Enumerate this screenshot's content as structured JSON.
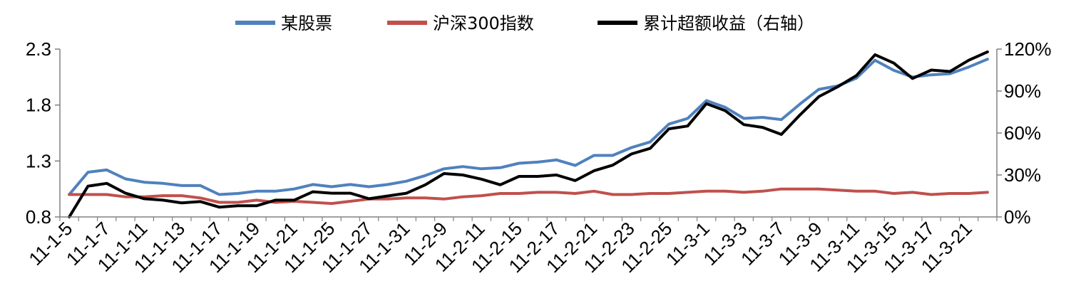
{
  "chart_data": {
    "type": "line",
    "title": "",
    "xlabel": "",
    "ylabel": "",
    "ylim": [
      0.8,
      2.3
    ],
    "ylim_right": [
      0,
      120
    ],
    "yticks": [
      "2.3",
      "1.8",
      "1.3",
      "0.8"
    ],
    "yticks_right": [
      "120%",
      "90%",
      "60%",
      "30%",
      "0%"
    ],
    "xtick_labels": [
      "11-1-5",
      "11-1-7",
      "11-1-11",
      "11-1-13",
      "11-1-17",
      "11-1-19",
      "11-1-21",
      "11-1-25",
      "11-1-27",
      "11-1-31",
      "11-2-9",
      "11-2-11",
      "11-2-15",
      "11-2-17",
      "11-2-21",
      "11-2-23",
      "11-2-25",
      "11-3-1",
      "11-3-3",
      "11-3-7",
      "11-3-9",
      "11-3-11",
      "11-3-15",
      "11-3-17",
      "11-3-21"
    ],
    "legend_position": "top",
    "grid": false,
    "series": [
      {
        "name": "某股票",
        "axis": "left",
        "color": "#4F81BD",
        "values": [
          1.0,
          1.2,
          1.22,
          1.14,
          1.11,
          1.1,
          1.08,
          1.08,
          1.0,
          1.01,
          1.03,
          1.03,
          1.05,
          1.09,
          1.07,
          1.09,
          1.07,
          1.09,
          1.12,
          1.17,
          1.23,
          1.25,
          1.23,
          1.24,
          1.28,
          1.29,
          1.31,
          1.26,
          1.35,
          1.35,
          1.42,
          1.47,
          1.63,
          1.68,
          1.84,
          1.78,
          1.68,
          1.69,
          1.67,
          1.81,
          1.94,
          1.97,
          2.04,
          2.2,
          2.11,
          2.05,
          2.07,
          2.08,
          2.14,
          2.21
        ]
      },
      {
        "name": "沪深300指数",
        "axis": "left",
        "color": "#C0504D",
        "values": [
          1.0,
          1.0,
          1.0,
          0.98,
          0.98,
          0.99,
          0.99,
          0.97,
          0.93,
          0.93,
          0.95,
          0.93,
          0.94,
          0.93,
          0.92,
          0.94,
          0.96,
          0.96,
          0.97,
          0.97,
          0.96,
          0.98,
          0.99,
          1.01,
          1.01,
          1.02,
          1.02,
          1.01,
          1.03,
          1.0,
          1.0,
          1.01,
          1.01,
          1.02,
          1.03,
          1.03,
          1.02,
          1.03,
          1.05,
          1.05,
          1.05,
          1.04,
          1.03,
          1.03,
          1.01,
          1.02,
          1.0,
          1.01,
          1.01,
          1.02
        ]
      },
      {
        "name": "累计超额收益（右轴）",
        "axis": "right",
        "color": "#000000",
        "values": [
          0,
          22,
          24,
          17,
          13,
          12,
          10,
          11,
          7,
          8,
          8,
          12,
          12,
          18,
          17,
          17,
          13,
          15,
          17,
          23,
          31,
          30,
          27,
          23,
          29,
          29,
          30,
          26,
          33,
          37,
          45,
          49,
          63,
          65,
          81,
          76,
          66,
          64,
          59,
          73,
          86,
          93,
          101,
          116,
          110,
          99,
          105,
          104,
          112,
          118
        ]
      }
    ]
  }
}
